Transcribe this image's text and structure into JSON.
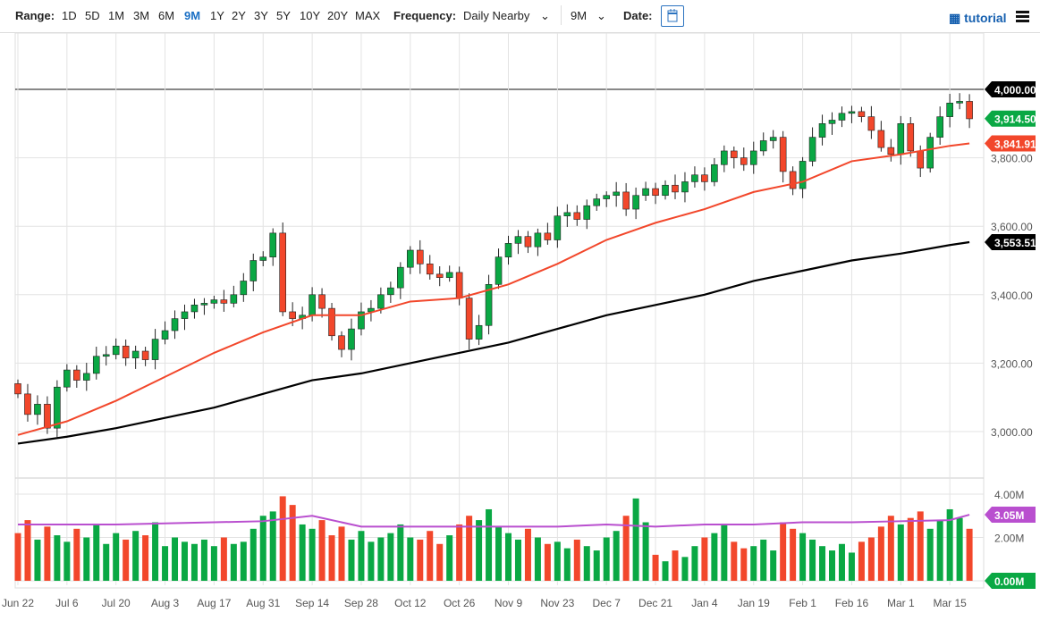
{
  "toolbar": {
    "range_label": "Range:",
    "ranges": [
      "1D",
      "5D",
      "1M",
      "3M",
      "6M",
      "9M",
      "1Y",
      "2Y",
      "3Y",
      "5Y",
      "10Y",
      "20Y",
      "MAX"
    ],
    "selected_range": "9M",
    "frequency_label": "Frequency:",
    "frequency_value": "Daily Nearby",
    "period_value": "9M",
    "date_label": "Date:",
    "tutorial_label": "tutorial",
    "icons": [
      "calendar-icon",
      "chevron-down-icon",
      "film-icon",
      "menu-icon"
    ]
  },
  "chart_data": {
    "type": "candlestick",
    "price_axis": {
      "ticks": [
        "4,000.00",
        "3,800.00",
        "3,600.00",
        "3,400.00",
        "3,200.00",
        "3,000.00"
      ],
      "tick_values": [
        4000,
        3800,
        3600,
        3400,
        3200,
        3000
      ],
      "ylim": [
        2890,
        4090
      ]
    },
    "volume_axis": {
      "ticks": [
        "4.00M",
        "2.00M"
      ],
      "tick_values": [
        4,
        2
      ],
      "ylim": [
        0,
        4.4
      ]
    },
    "x_labels": [
      "Jun 22",
      "Jul 6",
      "Jul 20",
      "Aug 3",
      "Aug 17",
      "Aug 31",
      "Sep 14",
      "Sep 28",
      "Oct 12",
      "Oct 26",
      "Nov 9",
      "Nov 23",
      "Dec 7",
      "Dec 21",
      "Jan 4",
      "Jan 19",
      "Feb 1",
      "Feb 16",
      "Mar 1",
      "Mar 15"
    ],
    "close": [
      3110,
      3050,
      3080,
      3010,
      3130,
      3180,
      3150,
      3170,
      3220,
      3225,
      3250,
      3215,
      3235,
      3210,
      3270,
      3295,
      3330,
      3350,
      3370,
      3375,
      3385,
      3375,
      3400,
      3440,
      3500,
      3510,
      3580,
      3350,
      3330,
      3340,
      3400,
      3360,
      3280,
      3240,
      3300,
      3350,
      3360,
      3400,
      3420,
      3480,
      3530,
      3490,
      3460,
      3450,
      3465,
      3390,
      3270,
      3310,
      3430,
      3510,
      3550,
      3570,
      3540,
      3580,
      3560,
      3630,
      3640,
      3620,
      3660,
      3680,
      3690,
      3700,
      3650,
      3690,
      3710,
      3690,
      3720,
      3700,
      3730,
      3750,
      3730,
      3780,
      3820,
      3800,
      3780,
      3820,
      3850,
      3860,
      3760,
      3710,
      3790,
      3860,
      3900,
      3910,
      3930,
      3935,
      3920,
      3880,
      3830,
      3810,
      3900,
      3820,
      3770,
      3860,
      3920,
      3960,
      3965,
      3914
    ],
    "volume": [
      2.2,
      2.8,
      1.9,
      2.5,
      2.1,
      1.8,
      2.4,
      2.0,
      2.6,
      1.7,
      2.2,
      1.9,
      2.3,
      2.1,
      2.7,
      1.6,
      2.0,
      1.8,
      1.7,
      1.9,
      1.6,
      2.0,
      1.7,
      1.8,
      2.4,
      3.0,
      3.2,
      3.9,
      3.5,
      2.6,
      2.4,
      2.8,
      2.1,
      2.5,
      1.9,
      2.3,
      1.8,
      2.0,
      2.2,
      2.6,
      2.0,
      1.9,
      2.3,
      1.7,
      2.1,
      2.6,
      3.0,
      2.8,
      3.3,
      2.5,
      2.2,
      1.9,
      2.4,
      2.0,
      1.7,
      1.8,
      1.5,
      1.9,
      1.6,
      1.4,
      2.0,
      2.3,
      3.0,
      3.8,
      2.7,
      1.2,
      0.9,
      1.4,
      1.1,
      1.6,
      2.0,
      2.2,
      2.6,
      1.8,
      1.5,
      1.6,
      1.9,
      1.4,
      2.7,
      2.4,
      2.2,
      1.9,
      1.6,
      1.4,
      1.7,
      1.3,
      1.8,
      2.0,
      2.5,
      3.0,
      2.6,
      2.9,
      3.2,
      2.4,
      2.8,
      3.3,
      2.9,
      2.4
    ],
    "ma50": [
      2990,
      3030,
      3090,
      3160,
      3230,
      3290,
      3340,
      3340,
      3380,
      3390,
      3430,
      3490,
      3560,
      3610,
      3650,
      3700,
      3730,
      3790,
      3810,
      3835,
      3841.91
    ],
    "ma200": [
      2965,
      2985,
      3010,
      3040,
      3070,
      3110,
      3150,
      3170,
      3200,
      3230,
      3260,
      3300,
      3340,
      3370,
      3400,
      3440,
      3470,
      3500,
      3520,
      3545,
      3553.51
    ],
    "volume_ma": [
      2.6,
      2.6,
      2.6,
      2.65,
      2.7,
      2.75,
      3.0,
      2.5,
      2.5,
      2.5,
      2.5,
      2.5,
      2.6,
      2.5,
      2.6,
      2.6,
      2.7,
      2.7,
      2.75,
      2.8,
      3.05
    ],
    "badges": {
      "level": "4,000.00",
      "last": "3,914.50",
      "ma50": "3,841.91",
      "ma200": "3,553.51",
      "volume_ma": "3.05M",
      "volume_zero": "0.00M"
    },
    "colors": {
      "up": "#0aa844",
      "down": "#f2472b",
      "ma50": "#f2472b",
      "ma200": "#000000",
      "volume_ma": "#b94fcf",
      "badge_last": "#0aa844",
      "badge_vma": "#b94fcf"
    }
  }
}
